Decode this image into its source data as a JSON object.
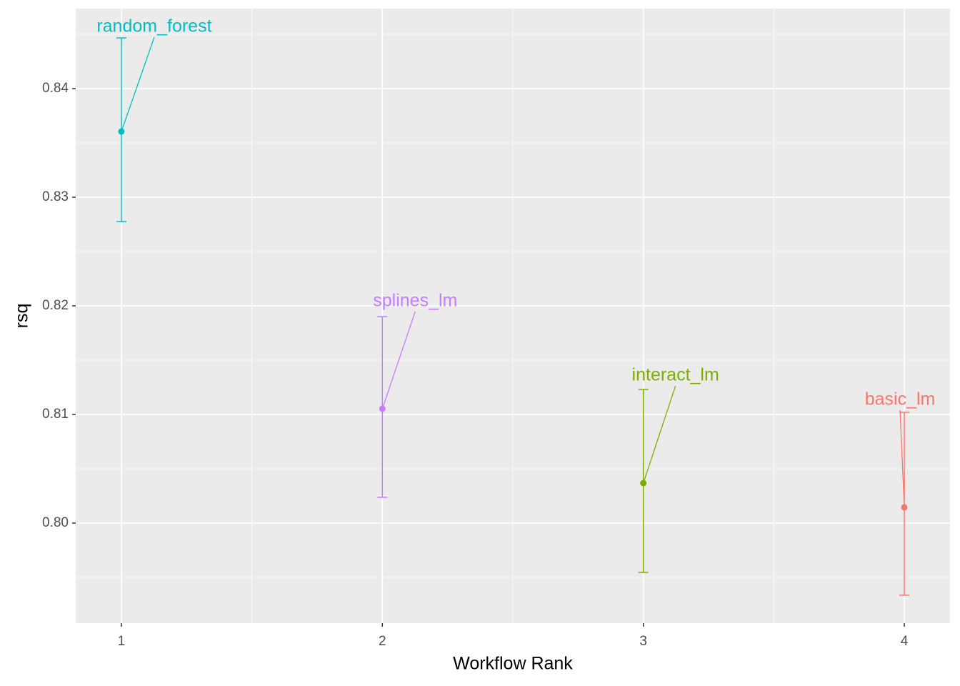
{
  "chart_data": {
    "type": "errorbar",
    "x_label": "Workflow Rank",
    "y_label": "rsq",
    "xlim": [
      0.825,
      4.175
    ],
    "ylim": [
      0.79079,
      0.84737
    ],
    "xticks": [
      1,
      2,
      3,
      4
    ],
    "yticks": [
      {
        "value": 0.8,
        "label": "0.80"
      },
      {
        "value": 0.81,
        "label": "0.81"
      },
      {
        "value": 0.82,
        "label": "0.82"
      },
      {
        "value": 0.83,
        "label": "0.83"
      },
      {
        "value": 0.84,
        "label": "0.84"
      }
    ],
    "xminor": [
      1.5,
      2.5,
      3.5
    ],
    "yminor": [
      0.795,
      0.805,
      0.815,
      0.825,
      0.835,
      0.845
    ],
    "grid": true,
    "series": [
      {
        "name": "random_forest",
        "color": "#00BFC4",
        "x": [
          1
        ],
        "values": [
          0.83605
        ],
        "lower": [
          0.82776
        ],
        "upper": [
          0.84467
        ]
      },
      {
        "name": "splines_lm",
        "color": "#C77CFF",
        "x": [
          2
        ],
        "values": [
          0.81053
        ],
        "lower": [
          0.80237
        ],
        "upper": [
          0.81901
        ]
      },
      {
        "name": "interact_lm",
        "color": "#7CAE00",
        "x": [
          3
        ],
        "values": [
          0.80368
        ],
        "lower": [
          0.79546
        ],
        "upper": [
          0.8123
        ]
      },
      {
        "name": "basic_lm",
        "color": "#F8766D",
        "x": [
          4
        ],
        "values": [
          0.80145
        ],
        "lower": [
          0.79336
        ],
        "upper": [
          0.8102
        ]
      }
    ]
  }
}
